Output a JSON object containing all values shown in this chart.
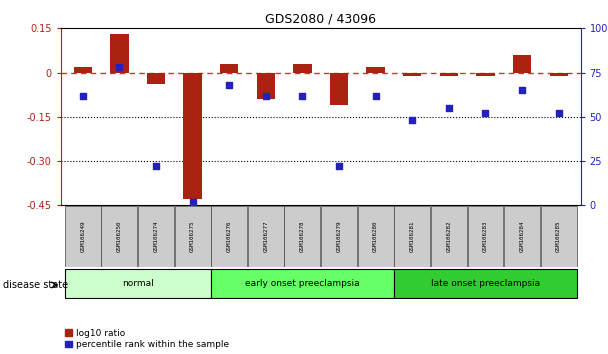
{
  "title": "GDS2080 / 43096",
  "samples": [
    "GSM106249",
    "GSM106250",
    "GSM106274",
    "GSM106275",
    "GSM106276",
    "GSM106277",
    "GSM106278",
    "GSM106279",
    "GSM106280",
    "GSM106281",
    "GSM106282",
    "GSM106283",
    "GSM106284",
    "GSM106285"
  ],
  "log10_ratio": [
    0.02,
    0.13,
    -0.04,
    -0.43,
    0.03,
    -0.09,
    0.03,
    -0.11,
    0.02,
    -0.01,
    -0.01,
    -0.01,
    0.06,
    -0.01
  ],
  "percentile_rank": [
    62,
    78,
    22,
    2,
    68,
    62,
    62,
    22,
    62,
    48,
    55,
    52,
    65,
    52
  ],
  "groups": [
    {
      "label": "normal",
      "start": 0,
      "end": 4,
      "color": "#ccffcc"
    },
    {
      "label": "early onset preeclampsia",
      "start": 4,
      "end": 9,
      "color": "#66ff66"
    },
    {
      "label": "late onset preeclampsia",
      "start": 9,
      "end": 14,
      "color": "#33cc33"
    }
  ],
  "ylim_left": [
    -0.45,
    0.15
  ],
  "ylim_right": [
    0,
    100
  ],
  "yticks_left": [
    -0.45,
    -0.3,
    -0.15,
    0.0,
    0.15
  ],
  "yticks_right": [
    0,
    25,
    50,
    75,
    100
  ],
  "bar_color_red": "#aa2211",
  "bar_color_blue": "#2222bb",
  "dashed_line_color": "#cc3333",
  "legend_label_red": "log10 ratio",
  "legend_label_blue": "percentile rank within the sample",
  "disease_state_label": "disease state",
  "normal_color": "#ccffcc",
  "early_color": "#66ff66",
  "late_color": "#33cc33"
}
